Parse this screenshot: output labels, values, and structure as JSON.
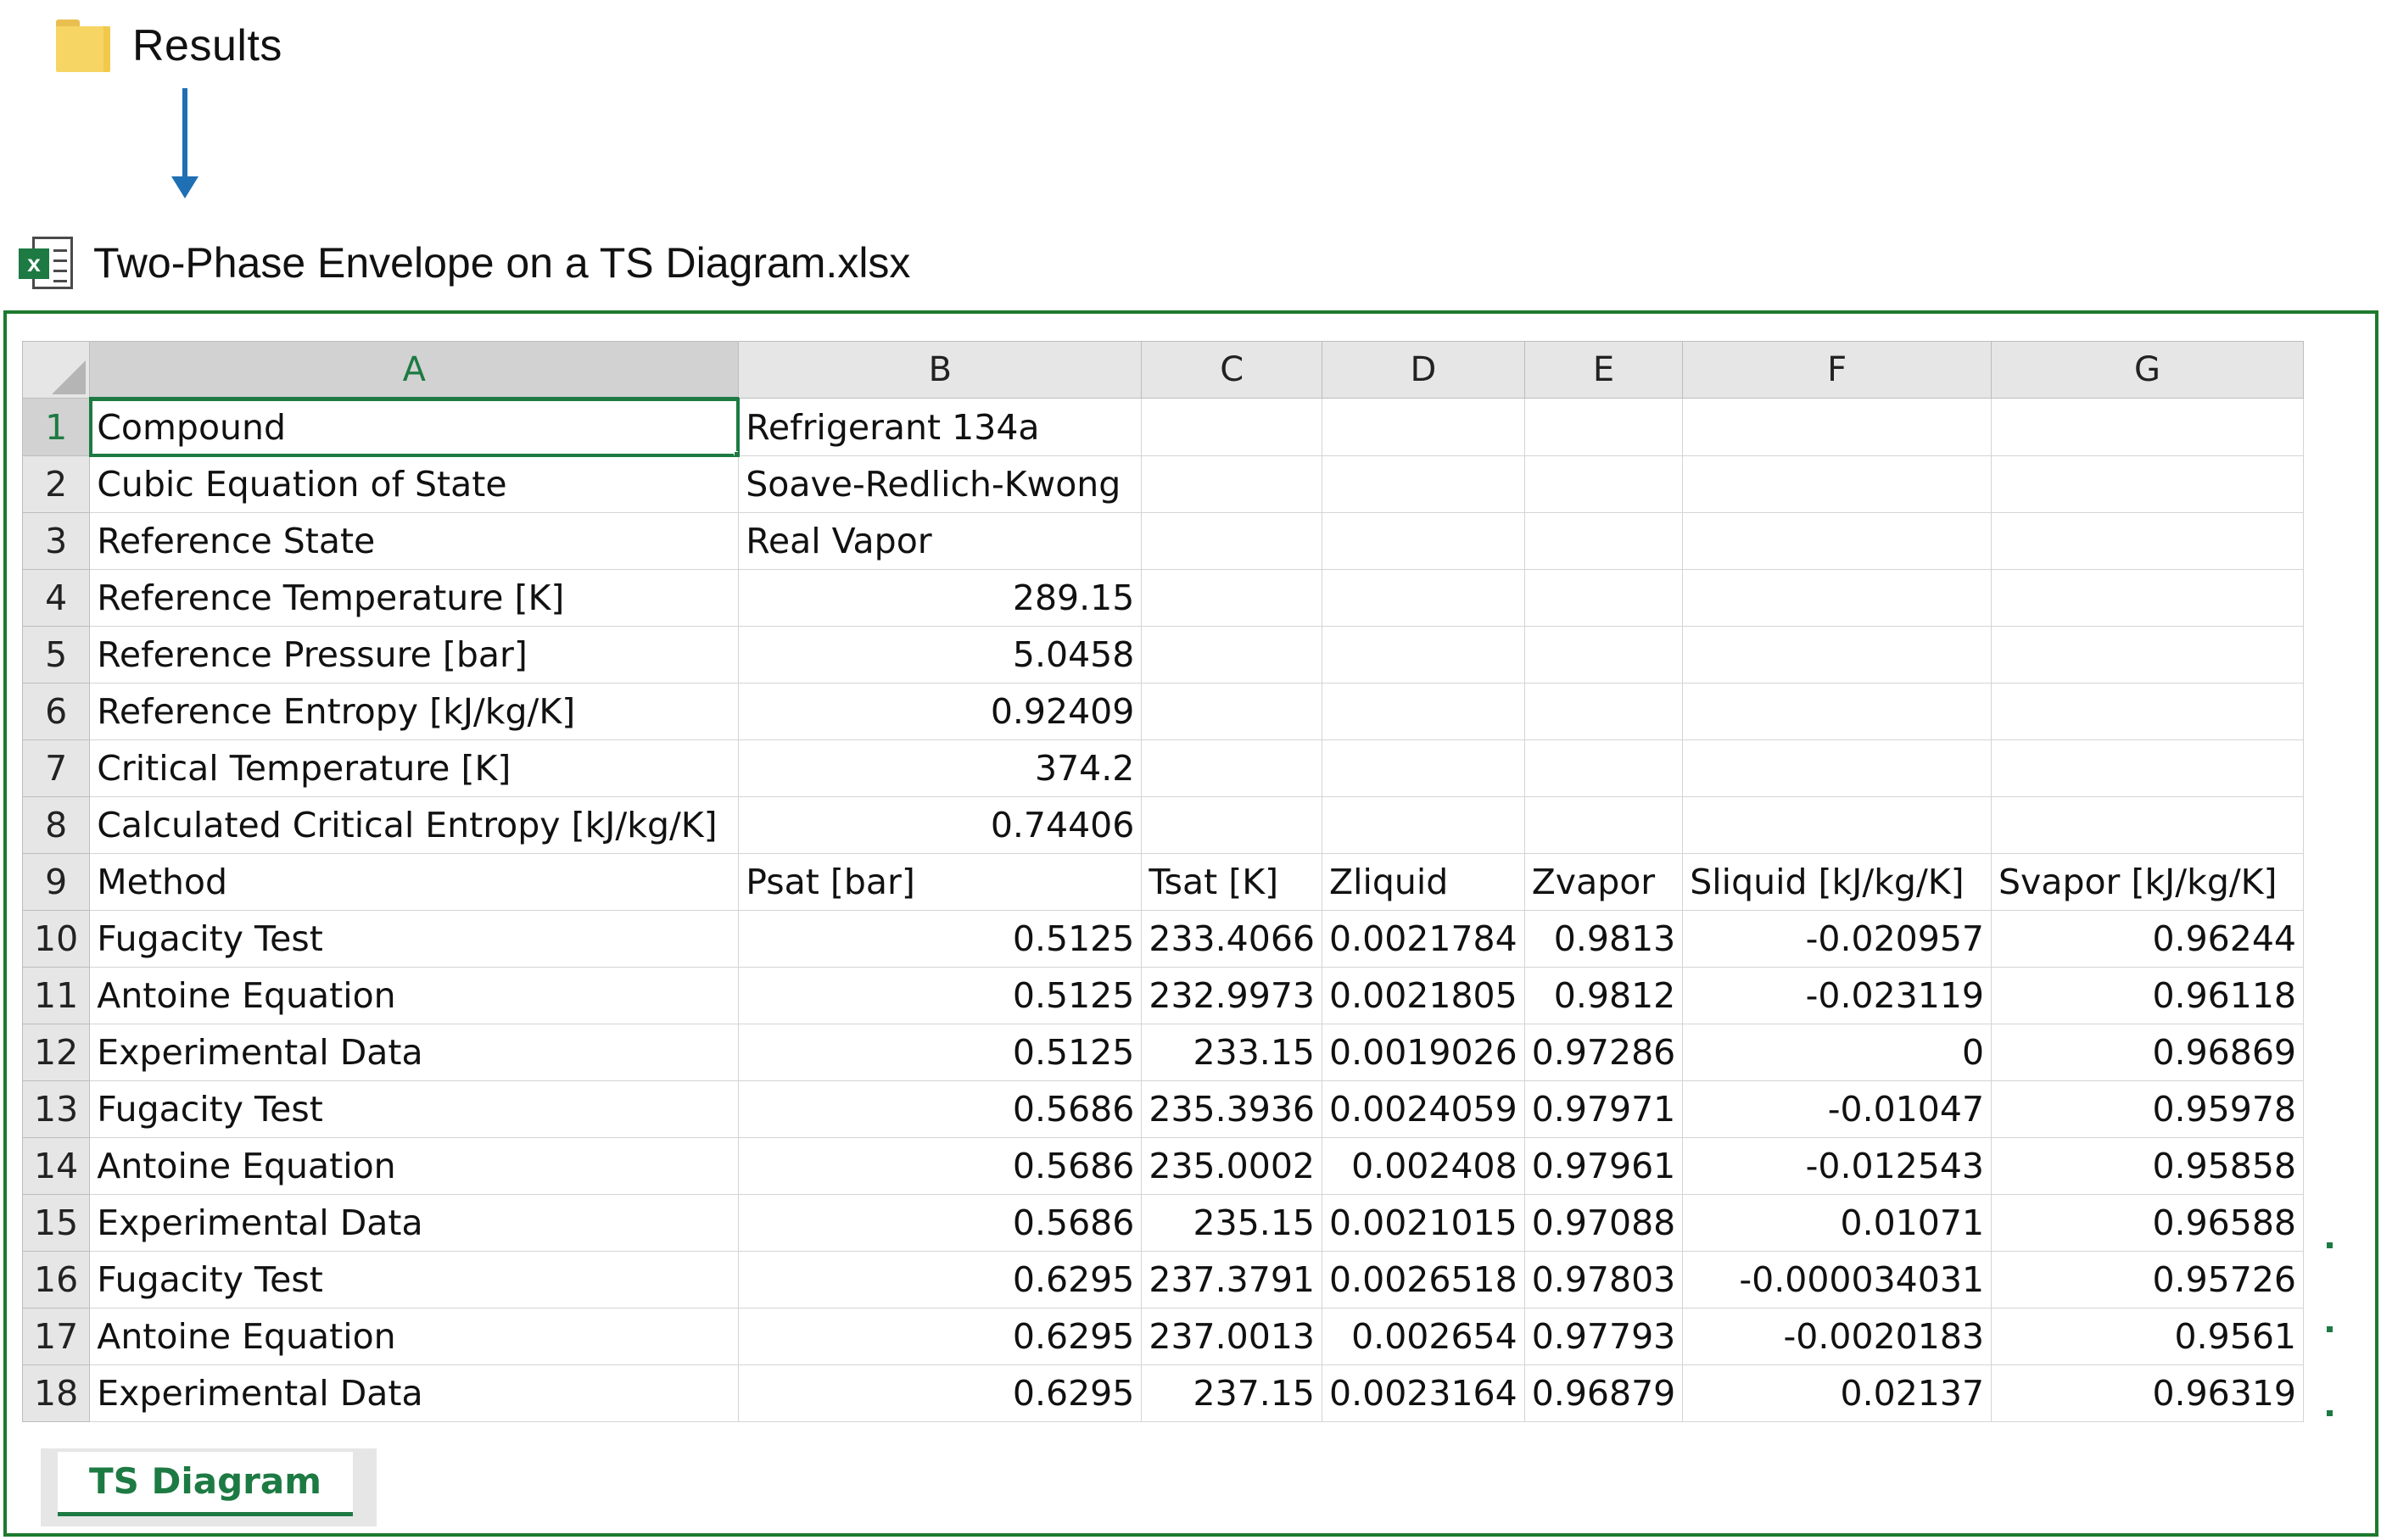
{
  "folder": {
    "label": "Results",
    "icon": "folder-icon"
  },
  "file": {
    "label": "Two-Phase Envelope on a TS Diagram.xlsx",
    "icon": "excel-file-icon"
  },
  "colors": {
    "accent": "#1d7a43",
    "arrow": "#1f6fb4",
    "frame": "#1d7a2e"
  },
  "columns": [
    "A",
    "B",
    "C",
    "D",
    "E",
    "F",
    "G"
  ],
  "selected_cell": "A1",
  "rows": [
    {
      "n": "1",
      "cells": [
        "Compound",
        "Refrigerant 134a",
        "",
        "",
        "",
        "",
        ""
      ]
    },
    {
      "n": "2",
      "cells": [
        "Cubic Equation of State",
        "Soave-Redlich-Kwong",
        "",
        "",
        "",
        "",
        ""
      ]
    },
    {
      "n": "3",
      "cells": [
        "Reference State",
        "Real Vapor",
        "",
        "",
        "",
        "",
        ""
      ]
    },
    {
      "n": "4",
      "cells": [
        "Reference Temperature [K]",
        "289.15",
        "",
        "",
        "",
        "",
        ""
      ]
    },
    {
      "n": "5",
      "cells": [
        "Reference Pressure [bar]",
        "5.0458",
        "",
        "",
        "",
        "",
        ""
      ]
    },
    {
      "n": "6",
      "cells": [
        "Reference Entropy [kJ/kg/K]",
        "0.92409",
        "",
        "",
        "",
        "",
        ""
      ]
    },
    {
      "n": "7",
      "cells": [
        "Critical Temperature [K]",
        "374.2",
        "",
        "",
        "",
        "",
        ""
      ]
    },
    {
      "n": "8",
      "cells": [
        "Calculated Critical Entropy [kJ/kg/K]",
        "0.74406",
        "",
        "",
        "",
        "",
        ""
      ]
    },
    {
      "n": "9",
      "cells": [
        "Method",
        "Psat [bar]",
        "Tsat [K]",
        "Zliquid",
        "Zvapor",
        "Sliquid [kJ/kg/K]",
        "Svapor [kJ/kg/K]"
      ]
    },
    {
      "n": "10",
      "cells": [
        "Fugacity Test",
        "0.5125",
        "233.4066",
        "0.0021784",
        "0.9813",
        "-0.020957",
        "0.96244"
      ]
    },
    {
      "n": "11",
      "cells": [
        "Antoine Equation",
        "0.5125",
        "232.9973",
        "0.0021805",
        "0.9812",
        "-0.023119",
        "0.96118"
      ]
    },
    {
      "n": "12",
      "cells": [
        "Experimental Data",
        "0.5125",
        "233.15",
        "0.0019026",
        "0.97286",
        "0",
        "0.96869"
      ]
    },
    {
      "n": "13",
      "cells": [
        "Fugacity Test",
        "0.5686",
        "235.3936",
        "0.0024059",
        "0.97971",
        "-0.01047",
        "0.95978"
      ]
    },
    {
      "n": "14",
      "cells": [
        "Antoine Equation",
        "0.5686",
        "235.0002",
        "0.002408",
        "0.97961",
        "-0.012543",
        "0.95858"
      ]
    },
    {
      "n": "15",
      "cells": [
        "Experimental Data",
        "0.5686",
        "235.15",
        "0.0021015",
        "0.97088",
        "0.01071",
        "0.96588"
      ]
    },
    {
      "n": "16",
      "cells": [
        "Fugacity Test",
        "0.6295",
        "237.3791",
        "0.0026518",
        "0.97803",
        "-0.000034031",
        "0.95726"
      ]
    },
    {
      "n": "17",
      "cells": [
        "Antoine Equation",
        "0.6295",
        "237.0013",
        "0.002654",
        "0.97793",
        "-0.0020183",
        "0.9561"
      ]
    },
    {
      "n": "18",
      "cells": [
        "Experimental Data",
        "0.6295",
        "237.15",
        "0.0023164",
        "0.96879",
        "0.02137",
        "0.96319"
      ]
    }
  ],
  "sheet_tab": {
    "label": "TS Diagram"
  }
}
